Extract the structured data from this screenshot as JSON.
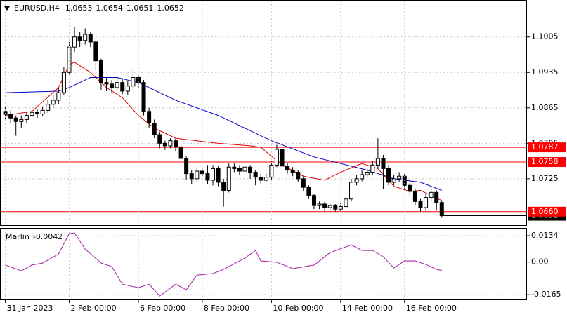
{
  "chart_data": [
    {
      "type": "candlestick",
      "symbol": "EURUSD,H4",
      "quote": [
        1.0653,
        1.0654,
        1.0651,
        1.0652
      ],
      "open": [
        1.0858,
        1.0852,
        1.0845,
        1.0838,
        1.0842,
        1.085,
        1.0856,
        1.0853,
        1.086,
        1.0872,
        1.088,
        1.0895,
        1.0935,
        1.0985,
        1.1005,
        1.0998,
        1.101,
        1.0995,
        1.0958,
        1.0915,
        1.0912,
        1.0905,
        1.0915,
        1.0898,
        1.0908,
        1.0925,
        1.0915,
        1.0858,
        1.0835,
        1.0812,
        1.0795,
        1.079,
        1.08,
        1.0788,
        1.0765,
        1.0735,
        1.0725,
        1.074,
        1.0735,
        1.0722,
        1.0745,
        1.0718,
        1.0702,
        1.0748,
        1.0745,
        1.074,
        1.0748,
        1.0738,
        1.0728,
        1.0722,
        1.0728,
        1.0752,
        1.0783,
        1.075,
        1.0742,
        1.0738,
        1.0725,
        1.0708,
        1.0692,
        1.0672,
        1.0675,
        1.0668,
        1.0672,
        1.0665,
        1.067,
        1.0685,
        1.0718,
        1.0725,
        1.0733,
        1.0738,
        1.0752,
        1.0765,
        1.0745,
        1.0718,
        1.0725,
        1.073,
        1.0712,
        1.07,
        1.068,
        1.0668,
        1.0688,
        1.0698,
        1.0678
      ],
      "high": [
        1.0866,
        1.086,
        1.085,
        1.085,
        1.0858,
        1.0864,
        1.0862,
        1.0868,
        1.088,
        1.089,
        1.0905,
        1.0945,
        1.0995,
        1.1025,
        1.1015,
        1.1022,
        1.1015,
        1.1,
        1.0962,
        1.0925,
        1.092,
        1.0925,
        1.0922,
        1.0918,
        1.094,
        1.0932,
        1.092,
        1.0865,
        1.0842,
        1.0818,
        1.08,
        1.0805,
        1.0805,
        1.0792,
        1.077,
        1.0742,
        1.0748,
        1.0745,
        1.0752,
        1.0752,
        1.075,
        1.0725,
        1.0755,
        1.0755,
        1.0752,
        1.0755,
        1.0752,
        1.0742,
        1.0735,
        1.0735,
        1.076,
        1.0792,
        1.0788,
        1.0755,
        1.0748,
        1.0742,
        1.073,
        1.0712,
        1.0695,
        1.068,
        1.068,
        1.0678,
        1.0675,
        1.0678,
        1.0692,
        1.0725,
        1.0732,
        1.0742,
        1.0745,
        1.076,
        1.0805,
        1.0772,
        1.0752,
        1.0732,
        1.0738,
        1.0735,
        1.0718,
        1.0705,
        1.0685,
        1.0695,
        1.0708,
        1.0702,
        1.0682
      ],
      "low": [
        1.0842,
        1.0835,
        1.081,
        1.0826,
        1.0835,
        1.0845,
        1.0845,
        1.0848,
        1.0855,
        1.0865,
        1.0872,
        1.089,
        1.093,
        1.0975,
        1.0985,
        1.099,
        1.0985,
        1.094,
        1.09,
        1.0898,
        1.0895,
        1.09,
        1.0892,
        1.089,
        1.0902,
        1.0905,
        1.085,
        1.0825,
        1.0805,
        1.0785,
        1.0782,
        1.0785,
        1.078,
        1.076,
        1.0722,
        1.0715,
        1.0718,
        1.0728,
        1.0715,
        1.0712,
        1.071,
        1.067,
        1.0698,
        1.0738,
        1.0732,
        1.0735,
        1.0725,
        1.0712,
        1.0715,
        1.0718,
        1.0722,
        1.0748,
        1.0742,
        1.0735,
        1.073,
        1.0718,
        1.07,
        1.0685,
        1.0665,
        1.0665,
        1.066,
        1.0662,
        1.066,
        1.066,
        1.0665,
        1.068,
        1.0712,
        1.072,
        1.0728,
        1.0732,
        1.0745,
        1.0705,
        1.0712,
        1.0712,
        1.0718,
        1.0705,
        1.0692,
        1.0672,
        1.066,
        1.0662,
        1.0682,
        1.0662,
        1.0648
      ],
      "close": [
        1.0852,
        1.0845,
        1.0838,
        1.0842,
        1.085,
        1.0856,
        1.0853,
        1.086,
        1.0872,
        1.088,
        1.0895,
        1.0935,
        1.0985,
        1.1005,
        1.0998,
        1.101,
        1.0995,
        1.0958,
        1.0915,
        1.0912,
        1.0905,
        1.0915,
        1.0898,
        1.0908,
        1.0925,
        1.0915,
        1.0858,
        1.0835,
        1.0812,
        1.0795,
        1.079,
        1.08,
        1.0788,
        1.0765,
        1.0735,
        1.0725,
        1.074,
        1.0735,
        1.0722,
        1.0745,
        1.0718,
        1.0702,
        1.0748,
        1.0745,
        1.074,
        1.0748,
        1.0738,
        1.0728,
        1.0722,
        1.0728,
        1.0752,
        1.0783,
        1.075,
        1.0742,
        1.0738,
        1.0725,
        1.0708,
        1.0692,
        1.0672,
        1.0675,
        1.0668,
        1.0672,
        1.0665,
        1.067,
        1.0685,
        1.0718,
        1.0725,
        1.0733,
        1.0738,
        1.0752,
        1.0765,
        1.0745,
        1.0718,
        1.0725,
        1.073,
        1.0712,
        1.07,
        1.068,
        1.0668,
        1.0688,
        1.0698,
        1.0678,
        1.0652
      ],
      "lines": [
        {
          "color": "#0000cc",
          "x": [
            0,
            10,
            12,
            16,
            21,
            25,
            32,
            40,
            45,
            50,
            58,
            63,
            68,
            73,
            78,
            82
          ],
          "values": [
            1.0895,
            1.0898,
            1.0905,
            1.0925,
            1.0925,
            1.0915,
            1.088,
            1.085,
            1.0825,
            1.08,
            1.0768,
            1.0755,
            1.0742,
            1.0725,
            1.0718,
            1.0702
          ]
        },
        {
          "color": "#dd0000",
          "x": [
            0,
            5,
            10,
            12,
            13,
            16,
            19,
            22,
            25,
            28,
            32,
            40,
            46,
            48,
            52,
            56,
            60,
            63,
            67,
            70,
            73,
            76,
            78,
            82
          ],
          "values": [
            1.085,
            1.0858,
            1.0905,
            1.095,
            1.0955,
            1.0935,
            1.0905,
            1.0885,
            1.085,
            1.0825,
            1.0805,
            1.0795,
            1.079,
            1.0787,
            1.0752,
            1.073,
            1.0722,
            1.0738,
            1.0755,
            1.0745,
            1.071,
            1.07,
            1.0702,
            1.0682
          ]
        }
      ],
      "levels": [
        1.0787,
        1.0758,
        {
          "value": 1.066,
          "label": "1.0660"
        }
      ],
      "level_color": "#ff0000",
      "current_price": 1.0652,
      "xlim": [
        -1,
        98
      ],
      "ylim": [
        1.0632,
        1.1078
      ],
      "yticks": [
        1.1005,
        1.0935,
        1.0865,
        1.0795,
        1.0725
      ],
      "grid": true
    },
    {
      "type": "line",
      "name": "Marlin",
      "last_value": -0.0042,
      "color": "#a020a0",
      "x": [
        0,
        3,
        5,
        7,
        10,
        12,
        13,
        15,
        18,
        20,
        22,
        25,
        27,
        29,
        32,
        34,
        36,
        39,
        41,
        45,
        47,
        48,
        51,
        54,
        58,
        61,
        65,
        67,
        69,
        71,
        73,
        75,
        77,
        79,
        81,
        82
      ],
      "values": [
        -0.0015,
        -0.0044,
        -0.0015,
        -0.0005,
        0.0041,
        0.0144,
        0.0148,
        0.0066,
        -0.0005,
        -0.0023,
        -0.0112,
        -0.013,
        -0.0112,
        -0.0172,
        -0.0112,
        -0.014,
        -0.0066,
        -0.0058,
        -0.0037,
        0.002,
        0.0059,
        0.0006,
        -0.0001,
        -0.0033,
        -0.0015,
        0.0048,
        0.0087,
        0.0059,
        0.0059,
        0.0027,
        -0.003,
        0.0006,
        0.0006,
        -0.0012,
        -0.0037,
        -0.0042
      ],
      "xlim": [
        -1,
        98
      ],
      "ylim": [
        -0.0193,
        0.0173
      ],
      "yticks": [
        0.0134,
        {
          "value": 0,
          "label": "0.00"
        },
        -0.0165
      ],
      "xticks": [
        {
          "value": 0,
          "label": "31 Jan 2023"
        },
        {
          "value": 12,
          "label": "2 Feb 00:00"
        },
        {
          "value": 25,
          "label": "6 Feb 00:00"
        },
        {
          "value": 37,
          "label": "8 Feb 00:00"
        },
        {
          "value": 50,
          "label": "10 Feb 00:00"
        },
        {
          "value": 63,
          "label": "14 Feb 00:00"
        },
        {
          "value": 75,
          "label": "16 Feb 00:00"
        }
      ],
      "grid": true
    }
  ]
}
